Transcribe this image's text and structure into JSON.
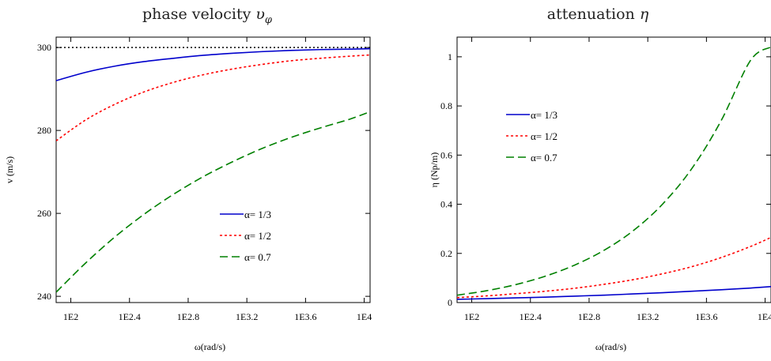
{
  "chart_data": [
    {
      "type": "line",
      "title": "phase velocity",
      "title_symbol": "υ",
      "title_subscript": "φ",
      "xlabel": "ω(rad/s)",
      "ylabel": "v (m/s)",
      "x_scale": "log10",
      "xlim": [
        1.9,
        4.04
      ],
      "ylim": [
        238.5,
        302.5
      ],
      "x_ticks": [
        2,
        2.4,
        2.8,
        3.2,
        3.6,
        4
      ],
      "x_tick_labels": [
        "1E2",
        "1E2.4",
        "1E2.8",
        "1E3.2",
        "1E3.6",
        "1E4"
      ],
      "y_ticks": [
        240,
        260,
        280,
        300
      ],
      "y_tick_labels": [
        "240",
        "260",
        "280",
        "300"
      ],
      "reference_line": {
        "y": 300,
        "style": "dotted",
        "color": "#000000"
      },
      "legend_position": "lower-right",
      "x": [
        1.9,
        2.1,
        2.3,
        2.5,
        2.7,
        2.9,
        3.1,
        3.3,
        3.5,
        3.7,
        3.9,
        4.04
      ],
      "series": [
        {
          "name": "α= 1/3",
          "color": "#0000cc",
          "dash": "solid",
          "values": [
            292.0,
            294.0,
            295.5,
            296.6,
            297.4,
            298.1,
            298.6,
            299.0,
            299.3,
            299.5,
            299.6,
            299.7
          ]
        },
        {
          "name": "α= 1/2",
          "color": "#ff0000",
          "dash": "dotted",
          "values": [
            277.5,
            282.5,
            286.3,
            289.3,
            291.6,
            293.4,
            294.8,
            295.9,
            296.8,
            297.4,
            297.9,
            298.2
          ]
        },
        {
          "name": "α= 0.7",
          "color": "#008000",
          "dash": "dashed",
          "values": [
            241.0,
            248.0,
            254.3,
            259.8,
            264.6,
            268.8,
            272.4,
            275.6,
            278.3,
            280.6,
            282.7,
            284.5
          ]
        }
      ]
    },
    {
      "type": "line",
      "title": "attenuation",
      "title_symbol": "η",
      "xlabel": "ω(rad/s)",
      "ylabel": "η (Np/m)",
      "x_scale": "log10",
      "xlim": [
        1.9,
        4.04
      ],
      "ylim": [
        0,
        1.08
      ],
      "x_ticks": [
        2,
        2.4,
        2.8,
        3.2,
        3.6,
        4
      ],
      "x_tick_labels": [
        "1E2",
        "1E2.4",
        "1E2.8",
        "1E3.2",
        "1E3.6",
        "1E4"
      ],
      "y_ticks": [
        0,
        0.2,
        0.4,
        0.6,
        0.8,
        1
      ],
      "y_tick_labels": [
        "0",
        "0.2",
        "0.4",
        "0.6",
        "0.8",
        "1"
      ],
      "legend_position": "upper-left",
      "x": [
        1.9,
        2.1,
        2.3,
        2.5,
        2.7,
        2.9,
        3.1,
        3.3,
        3.5,
        3.7,
        3.9,
        4.04
      ],
      "series": [
        {
          "name": "α= 1/3",
          "color": "#0000cc",
          "dash": "solid",
          "values": [
            0.013,
            0.016,
            0.019,
            0.022,
            0.026,
            0.03,
            0.035,
            0.04,
            0.046,
            0.052,
            0.059,
            0.065
          ]
        },
        {
          "name": "α= 1/2",
          "color": "#ff0000",
          "dash": "dotted",
          "values": [
            0.02,
            0.027,
            0.036,
            0.046,
            0.058,
            0.074,
            0.093,
            0.117,
            0.146,
            0.183,
            0.228,
            0.265
          ]
        },
        {
          "name": "α= 0.7",
          "color": "#008000",
          "dash": "dashed",
          "values": [
            0.03,
            0.048,
            0.073,
            0.107,
            0.152,
            0.212,
            0.292,
            0.4,
            0.545,
            0.74,
            0.985,
            1.04
          ]
        }
      ]
    }
  ]
}
